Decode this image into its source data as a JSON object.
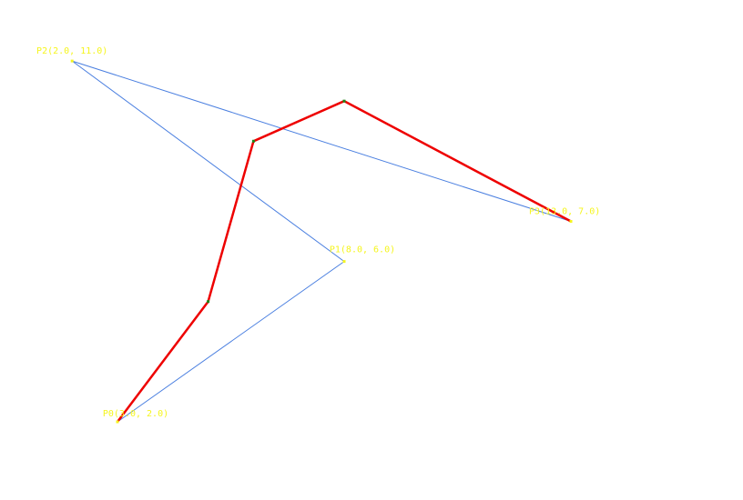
{
  "colors": {
    "background": "#ffffff",
    "control_polygon": "#4a7fe0",
    "curve": "#ee0000",
    "label": "#f5f51e",
    "vertex": "#1a8a1a"
  },
  "control_points": [
    {
      "label": "P0(3.0, 2.0)",
      "x": 3.0,
      "y": 2.0
    },
    {
      "label": "P1(8.0, 6.0)",
      "x": 8.0,
      "y": 6.0
    },
    {
      "label": "P2(2.0, 11.0)",
      "x": 2.0,
      "y": 11.0
    },
    {
      "label": "P3(13.0, 7.0)",
      "x": 13.0,
      "y": 7.0
    }
  ],
  "curve_points": [
    {
      "x": 3.0,
      "y": 2.0
    },
    {
      "x": 5.0,
      "y": 5.0
    },
    {
      "x": 6.0,
      "y": 9.0
    },
    {
      "x": 8.0,
      "y": 10.0
    },
    {
      "x": 13.0,
      "y": 7.0
    }
  ]
}
